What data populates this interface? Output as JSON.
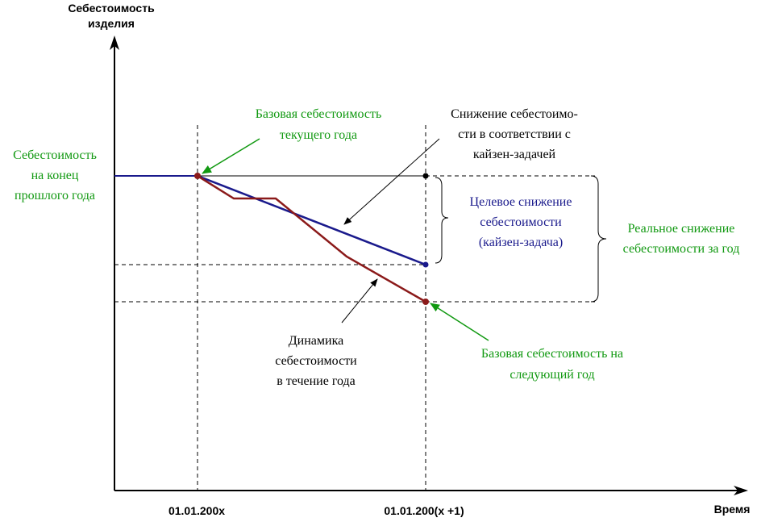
{
  "colors": {
    "axis": "#000000",
    "green": "#119911",
    "blue": "#1a1a8c",
    "red": "#8b1a1a",
    "annotation": "#000000"
  },
  "axes": {
    "y_label_line1": "Себестоимость",
    "y_label_line2": "изделия",
    "x_label": "Время",
    "x_tick_start": "01.01.200x",
    "x_tick_end": "01.01.200(x +1)"
  },
  "labels": {
    "prev_year_cost": [
      "Себестоимость",
      "на конец",
      "прошлого года"
    ],
    "base_cost_current": [
      "Базовая себестоимость",
      "текущего года"
    ],
    "kaizen_reduction": [
      "Снижение себестоимо-",
      "сти в соответствии с",
      "кайзен-задачей"
    ],
    "target_reduction": [
      "Целевое снижение",
      "себестоимости",
      "(кайзен-задача)"
    ],
    "real_reduction": [
      "Реальное снижение",
      "себестоимости за год"
    ],
    "cost_dynamics": [
      "Динамика",
      "себестоимости",
      "в течение года"
    ],
    "base_cost_next": [
      "Базовая себестоимость на",
      "следующий год"
    ]
  }
}
